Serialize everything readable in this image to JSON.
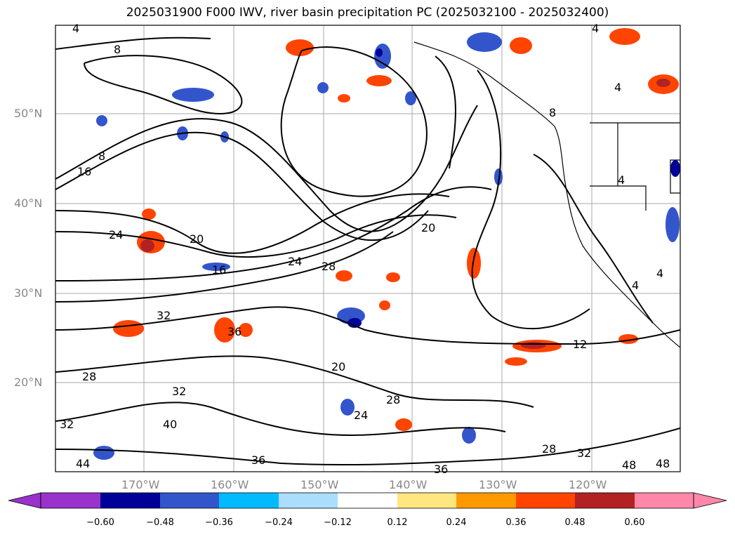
{
  "title": "2025031900 F000 IWV, river basin precipitation PC (2025032100 - 2025032400)",
  "map": {
    "lat_labels": [
      "50°N",
      "40°N",
      "30°N",
      "20°N"
    ],
    "lon_labels": [
      "170°W",
      "160°W",
      "150°W",
      "140°W",
      "130°W",
      "120°W"
    ],
    "contour_labels": [
      "4",
      "8",
      "8",
      "8",
      "16",
      "20",
      "20",
      "24",
      "24",
      "28",
      "28",
      "32",
      "32",
      "32",
      "36",
      "36",
      "36",
      "40",
      "44",
      "12",
      "16",
      "20",
      "24",
      "28",
      "28",
      "32",
      "48",
      "48",
      "4",
      "4",
      "4",
      "4",
      "4"
    ],
    "colors": {
      "ocean_bg": "#ffffff",
      "contour": "#000000",
      "coast": "#000000",
      "grid": "#aaaaaa"
    }
  },
  "colorbar": {
    "ticks": [
      "−0.60",
      "−0.48",
      "−0.36",
      "−0.24",
      "−0.12",
      "0.12",
      "0.24",
      "0.36",
      "0.48",
      "0.60"
    ],
    "colors": [
      "#9933cc",
      "#000099",
      "#3355cc",
      "#00bbff",
      "#aaddff",
      "#ffffff",
      "#ffe680",
      "#ff9900",
      "#ff4400",
      "#b22222",
      "#ff88aa"
    ]
  }
}
